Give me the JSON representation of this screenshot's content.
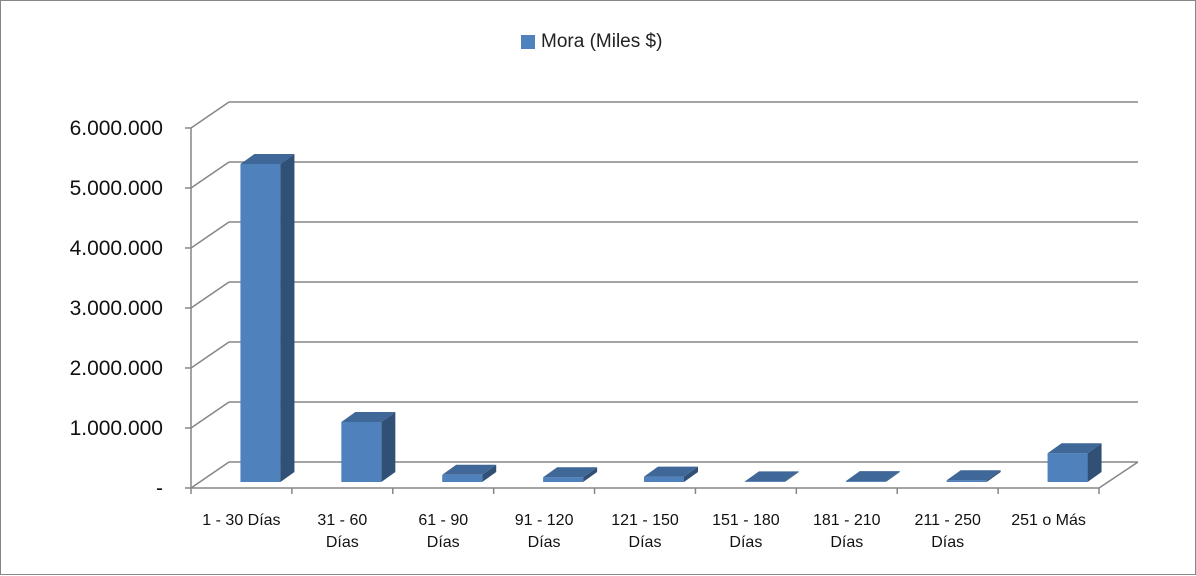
{
  "chart_data": {
    "type": "bar",
    "style": "3d-column",
    "series": [
      {
        "name": "Mora (Miles $)",
        "color": "#4F81BD",
        "values": [
          5300000,
          1000000,
          120000,
          80000,
          90000,
          10000,
          15000,
          30000,
          480000
        ]
      }
    ],
    "categories": [
      [
        "1 - 30 Días"
      ],
      [
        "31 - 60",
        "Días"
      ],
      [
        "61 - 90",
        "Días"
      ],
      [
        "91 - 120",
        "Días"
      ],
      [
        "121 - 150",
        "Días"
      ],
      [
        "151 - 180",
        "Días"
      ],
      [
        "181 - 210",
        "Días"
      ],
      [
        "211 - 250",
        "Días"
      ],
      [
        "251 o Más"
      ]
    ],
    "y_ticks": [
      "-",
      "1.000.000",
      "2.000.000",
      "3.000.000",
      "4.000.000",
      "5.000.000",
      "6.000.000"
    ],
    "ylim": [
      0,
      6000000
    ],
    "grid": true,
    "legend_position": "top"
  }
}
